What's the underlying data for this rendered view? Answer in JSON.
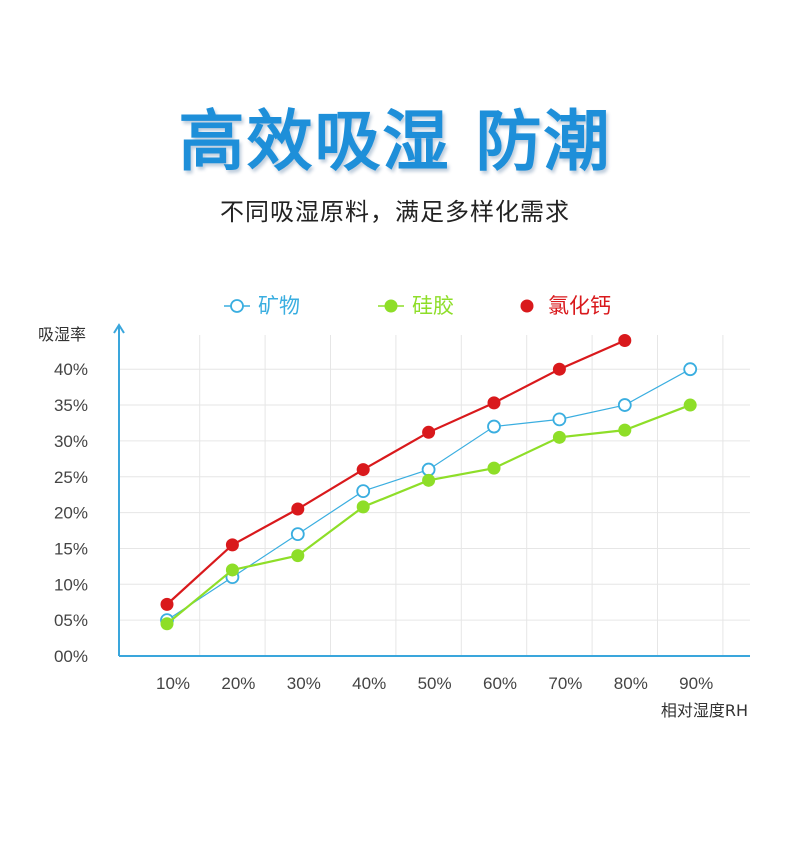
{
  "header": {
    "title": "高效吸湿 防潮",
    "subtitle": "不同吸湿原料，满足多样化需求"
  },
  "colors": {
    "axis": "#3aa6dc",
    "grid": "#e6e6e6",
    "title": "#1e8fd9"
  },
  "chart_data": {
    "type": "line",
    "ylabel": "吸湿率",
    "xlabel": "相对湿度RH",
    "categories": [
      "10%",
      "20%",
      "30%",
      "40%",
      "50%",
      "60%",
      "70%",
      "80%",
      "90%"
    ],
    "y_ticks": [
      "00%",
      "05%",
      "10%",
      "15%",
      "20%",
      "25%",
      "30%",
      "35%",
      "40%"
    ],
    "ylim": [
      0,
      43
    ],
    "grid": true,
    "legend_position": "top",
    "series": [
      {
        "name": "矿物",
        "color": "#3aaee0",
        "marker": "hollow-circle",
        "values": [
          5.0,
          11.0,
          17.0,
          23.0,
          26.0,
          32.0,
          33.0,
          35.0,
          40.0
        ]
      },
      {
        "name": "硅胶",
        "color": "#8ede28",
        "marker": "filled-circle",
        "values": [
          4.5,
          12.0,
          14.0,
          20.8,
          24.5,
          26.2,
          30.5,
          31.5,
          35.0
        ]
      },
      {
        "name": "氯化钙",
        "color": "#d9191c",
        "marker": "filled-circle",
        "values": [
          7.2,
          15.5,
          20.5,
          26.0,
          31.2,
          35.3,
          40.0,
          44.0,
          null
        ]
      }
    ]
  }
}
